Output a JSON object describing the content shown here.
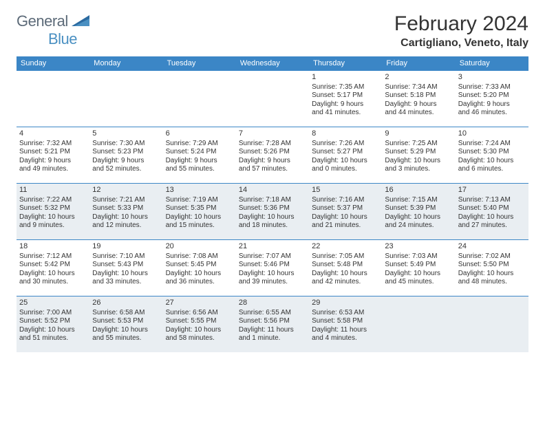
{
  "brand": {
    "left": "General",
    "right": "Blue"
  },
  "title": "February 2024",
  "location": "Cartigliano, Veneto, Italy",
  "colors": {
    "header_bg": "#3b86c6",
    "header_text": "#ffffff",
    "cell_border": "#3b86c6",
    "shaded_bg": "#e9eef2",
    "text": "#333333",
    "brand_gray": "#5c6a78",
    "brand_blue": "#4a90c2",
    "page_bg": "#ffffff"
  },
  "typography": {
    "title_fontsize": 30,
    "location_fontsize": 16,
    "dow_fontsize": 11,
    "daynum_fontsize": 11,
    "cell_fontsize": 10
  },
  "daysOfWeek": [
    "Sunday",
    "Monday",
    "Tuesday",
    "Wednesday",
    "Thursday",
    "Friday",
    "Saturday"
  ],
  "shadedRows": [
    2,
    4
  ],
  "weeks": [
    [
      null,
      null,
      null,
      null,
      {
        "n": "1",
        "sr": "Sunrise: 7:35 AM",
        "ss": "Sunset: 5:17 PM",
        "d1": "Daylight: 9 hours",
        "d2": "and 41 minutes."
      },
      {
        "n": "2",
        "sr": "Sunrise: 7:34 AM",
        "ss": "Sunset: 5:18 PM",
        "d1": "Daylight: 9 hours",
        "d2": "and 44 minutes."
      },
      {
        "n": "3",
        "sr": "Sunrise: 7:33 AM",
        "ss": "Sunset: 5:20 PM",
        "d1": "Daylight: 9 hours",
        "d2": "and 46 minutes."
      }
    ],
    [
      {
        "n": "4",
        "sr": "Sunrise: 7:32 AM",
        "ss": "Sunset: 5:21 PM",
        "d1": "Daylight: 9 hours",
        "d2": "and 49 minutes."
      },
      {
        "n": "5",
        "sr": "Sunrise: 7:30 AM",
        "ss": "Sunset: 5:23 PM",
        "d1": "Daylight: 9 hours",
        "d2": "and 52 minutes."
      },
      {
        "n": "6",
        "sr": "Sunrise: 7:29 AM",
        "ss": "Sunset: 5:24 PM",
        "d1": "Daylight: 9 hours",
        "d2": "and 55 minutes."
      },
      {
        "n": "7",
        "sr": "Sunrise: 7:28 AM",
        "ss": "Sunset: 5:26 PM",
        "d1": "Daylight: 9 hours",
        "d2": "and 57 minutes."
      },
      {
        "n": "8",
        "sr": "Sunrise: 7:26 AM",
        "ss": "Sunset: 5:27 PM",
        "d1": "Daylight: 10 hours",
        "d2": "and 0 minutes."
      },
      {
        "n": "9",
        "sr": "Sunrise: 7:25 AM",
        "ss": "Sunset: 5:29 PM",
        "d1": "Daylight: 10 hours",
        "d2": "and 3 minutes."
      },
      {
        "n": "10",
        "sr": "Sunrise: 7:24 AM",
        "ss": "Sunset: 5:30 PM",
        "d1": "Daylight: 10 hours",
        "d2": "and 6 minutes."
      }
    ],
    [
      {
        "n": "11",
        "sr": "Sunrise: 7:22 AM",
        "ss": "Sunset: 5:32 PM",
        "d1": "Daylight: 10 hours",
        "d2": "and 9 minutes."
      },
      {
        "n": "12",
        "sr": "Sunrise: 7:21 AM",
        "ss": "Sunset: 5:33 PM",
        "d1": "Daylight: 10 hours",
        "d2": "and 12 minutes."
      },
      {
        "n": "13",
        "sr": "Sunrise: 7:19 AM",
        "ss": "Sunset: 5:35 PM",
        "d1": "Daylight: 10 hours",
        "d2": "and 15 minutes."
      },
      {
        "n": "14",
        "sr": "Sunrise: 7:18 AM",
        "ss": "Sunset: 5:36 PM",
        "d1": "Daylight: 10 hours",
        "d2": "and 18 minutes."
      },
      {
        "n": "15",
        "sr": "Sunrise: 7:16 AM",
        "ss": "Sunset: 5:37 PM",
        "d1": "Daylight: 10 hours",
        "d2": "and 21 minutes."
      },
      {
        "n": "16",
        "sr": "Sunrise: 7:15 AM",
        "ss": "Sunset: 5:39 PM",
        "d1": "Daylight: 10 hours",
        "d2": "and 24 minutes."
      },
      {
        "n": "17",
        "sr": "Sunrise: 7:13 AM",
        "ss": "Sunset: 5:40 PM",
        "d1": "Daylight: 10 hours",
        "d2": "and 27 minutes."
      }
    ],
    [
      {
        "n": "18",
        "sr": "Sunrise: 7:12 AM",
        "ss": "Sunset: 5:42 PM",
        "d1": "Daylight: 10 hours",
        "d2": "and 30 minutes."
      },
      {
        "n": "19",
        "sr": "Sunrise: 7:10 AM",
        "ss": "Sunset: 5:43 PM",
        "d1": "Daylight: 10 hours",
        "d2": "and 33 minutes."
      },
      {
        "n": "20",
        "sr": "Sunrise: 7:08 AM",
        "ss": "Sunset: 5:45 PM",
        "d1": "Daylight: 10 hours",
        "d2": "and 36 minutes."
      },
      {
        "n": "21",
        "sr": "Sunrise: 7:07 AM",
        "ss": "Sunset: 5:46 PM",
        "d1": "Daylight: 10 hours",
        "d2": "and 39 minutes."
      },
      {
        "n": "22",
        "sr": "Sunrise: 7:05 AM",
        "ss": "Sunset: 5:48 PM",
        "d1": "Daylight: 10 hours",
        "d2": "and 42 minutes."
      },
      {
        "n": "23",
        "sr": "Sunrise: 7:03 AM",
        "ss": "Sunset: 5:49 PM",
        "d1": "Daylight: 10 hours",
        "d2": "and 45 minutes."
      },
      {
        "n": "24",
        "sr": "Sunrise: 7:02 AM",
        "ss": "Sunset: 5:50 PM",
        "d1": "Daylight: 10 hours",
        "d2": "and 48 minutes."
      }
    ],
    [
      {
        "n": "25",
        "sr": "Sunrise: 7:00 AM",
        "ss": "Sunset: 5:52 PM",
        "d1": "Daylight: 10 hours",
        "d2": "and 51 minutes."
      },
      {
        "n": "26",
        "sr": "Sunrise: 6:58 AM",
        "ss": "Sunset: 5:53 PM",
        "d1": "Daylight: 10 hours",
        "d2": "and 55 minutes."
      },
      {
        "n": "27",
        "sr": "Sunrise: 6:56 AM",
        "ss": "Sunset: 5:55 PM",
        "d1": "Daylight: 10 hours",
        "d2": "and 58 minutes."
      },
      {
        "n": "28",
        "sr": "Sunrise: 6:55 AM",
        "ss": "Sunset: 5:56 PM",
        "d1": "Daylight: 11 hours",
        "d2": "and 1 minute."
      },
      {
        "n": "29",
        "sr": "Sunrise: 6:53 AM",
        "ss": "Sunset: 5:58 PM",
        "d1": "Daylight: 11 hours",
        "d2": "and 4 minutes."
      },
      null,
      null
    ]
  ]
}
